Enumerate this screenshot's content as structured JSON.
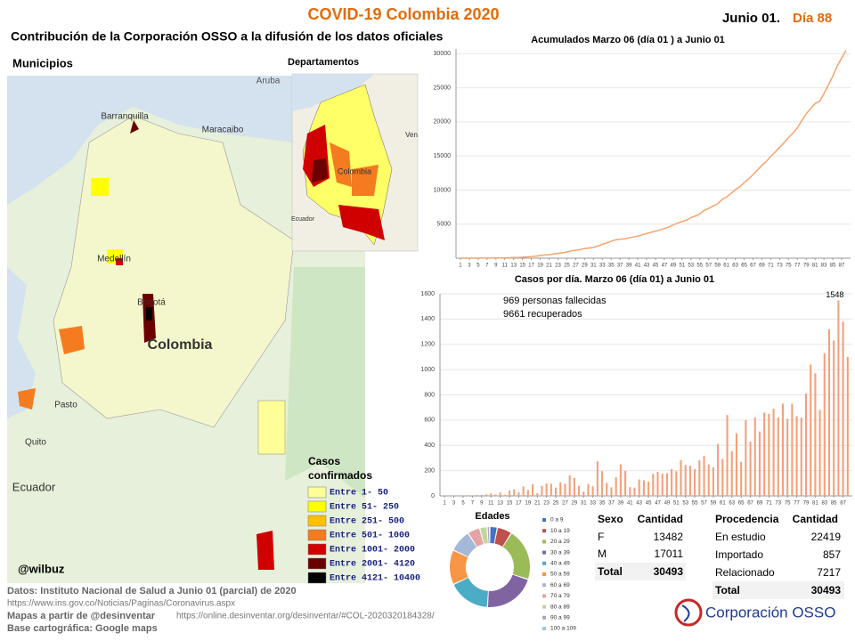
{
  "header": {
    "title": "COVID-19 Colombia 2020",
    "date": "Junio 01.",
    "day": "Día 88",
    "subtitle": "Contribución de la Corporación OSSO a la difusión de los datos oficiales"
  },
  "maps": {
    "municipios_title": "Municipios",
    "departamentos_title": "Departamentos",
    "labels": [
      "Aruba",
      "Barranquilla",
      "Maracaibo",
      "Medellín",
      "Bogotá",
      "Colombia",
      "Quito",
      "Ecuador",
      "Pasto",
      "Colombia",
      "Ven",
      "Ecuador"
    ],
    "legend_title": [
      "Casos",
      "confirmados"
    ],
    "legend": [
      {
        "label": "Entre 1- 50",
        "color": "#ffff99"
      },
      {
        "label": "Entre 51- 250",
        "color": "#ffff00"
      },
      {
        "label": "Entre 251- 500",
        "color": "#ffc000"
      },
      {
        "label": "Entre 501- 1000",
        "color": "#f47b20"
      },
      {
        "label": "Entre 1001- 2000",
        "color": "#d00000"
      },
      {
        "label": "Entre 2001- 4120",
        "color": "#6b0000"
      },
      {
        "label": "Entre 4121- 10400",
        "color": "#000000"
      }
    ],
    "credit": "@wilbuz"
  },
  "chart_data": [
    {
      "type": "line",
      "title": "Acumulados  Marzo 06 (día 01 ) a Junio 01",
      "color": "#f4a46c",
      "x": [
        1,
        2,
        3,
        4,
        5,
        6,
        7,
        8,
        9,
        10,
        11,
        12,
        13,
        14,
        15,
        16,
        17,
        18,
        19,
        20,
        21,
        22,
        23,
        24,
        25,
        26,
        27,
        28,
        29,
        30,
        31,
        32,
        33,
        34,
        35,
        36,
        37,
        38,
        39,
        40,
        41,
        42,
        43,
        44,
        45,
        46,
        47,
        48,
        49,
        50,
        51,
        52,
        53,
        54,
        55,
        56,
        57,
        58,
        59,
        60,
        61,
        62,
        63,
        64,
        65,
        66,
        67,
        68,
        69,
        70,
        71,
        72,
        73,
        74,
        75,
        76,
        77,
        78,
        79,
        80,
        81,
        82,
        83,
        84,
        85,
        86,
        87,
        88
      ],
      "values": [
        1,
        1,
        1,
        3,
        3,
        9,
        9,
        16,
        24,
        35,
        55,
        66,
        93,
        102,
        145,
        196,
        231,
        306,
        378,
        470,
        491,
        608,
        702,
        798,
        906,
        1065,
        1161,
        1267,
        1406,
        1485,
        1579,
        1780,
        2054,
        2223,
        2473,
        2709,
        2776,
        2852,
        2979,
        3105,
        3233,
        3439,
        3621,
        3792,
        3977,
        4149,
        4356,
        4561,
        4881,
        5142,
        5379,
        5597,
        5949,
        6207,
        6507,
        7006,
        7285,
        7668,
        7973,
        8613,
        8959,
        9456,
        10051,
        10495,
        11063,
        11613,
        12272,
        12930,
        13610,
        14216,
        14939,
        15574,
        16295,
        16935,
        17687,
        18330,
        19131,
        20177,
        21175,
        21981,
        22687,
        23003,
        24141,
        25406,
        26688,
        28236,
        29383,
        30493
      ],
      "xlim": [
        0,
        89
      ],
      "xticks": [
        1,
        3,
        5,
        7,
        9,
        11,
        13,
        15,
        17,
        19,
        21,
        23,
        25,
        27,
        29,
        31,
        33,
        35,
        37,
        39,
        41,
        43,
        45,
        47,
        49,
        51,
        53,
        55,
        57,
        59,
        61,
        63,
        65,
        67,
        69,
        71,
        73,
        75,
        77,
        79,
        81,
        83,
        85,
        87
      ],
      "ylim": [
        0,
        30700
      ],
      "yticks": [
        5000,
        10000,
        15000,
        20000,
        25000,
        30000
      ],
      "grid": true
    },
    {
      "type": "bar",
      "title": "Casos por día. Marzo 06 (día 01) a Junio 01",
      "color": "#f4a07a",
      "annotations": [
        "969 personas fallecidas",
        "9661 recuperados"
      ],
      "x": [
        1,
        2,
        3,
        4,
        5,
        6,
        7,
        8,
        9,
        10,
        11,
        12,
        13,
        14,
        15,
        16,
        17,
        18,
        19,
        20,
        21,
        22,
        23,
        24,
        25,
        26,
        27,
        28,
        29,
        30,
        31,
        32,
        33,
        34,
        35,
        36,
        37,
        38,
        39,
        40,
        41,
        42,
        43,
        44,
        45,
        46,
        47,
        48,
        49,
        50,
        51,
        52,
        53,
        54,
        55,
        56,
        57,
        58,
        59,
        60,
        61,
        62,
        63,
        64,
        65,
        66,
        67,
        68,
        69,
        70,
        71,
        72,
        73,
        74,
        75,
        76,
        77,
        78,
        79,
        80,
        81,
        82,
        83,
        84,
        85,
        86,
        87,
        88
      ],
      "values": [
        1,
        0,
        0,
        1,
        0,
        6,
        0,
        7,
        8,
        11,
        20,
        11,
        27,
        9,
        43,
        52,
        29,
        75,
        47,
        92,
        21,
        79,
        98,
        96,
        66,
        108,
        96,
        163,
        141,
        79,
        34,
        94,
        76,
        274,
        196,
        103,
        68,
        148,
        250,
        198,
        69,
        66,
        130,
        124,
        112,
        175,
        190,
        176,
        180,
        212,
        195,
        283,
        245,
        239,
        212,
        282,
        316,
        250,
        226,
        412,
        293,
        640,
        354,
        496,
        270,
        600,
        430,
        620,
        510,
        660,
        650,
        690,
        620,
        730,
        610,
        730,
        630,
        620,
        810,
        1040,
        970,
        680,
        1130,
        1320,
        1230,
        1548,
        1380,
        1100
      ],
      "xlim": [
        0,
        89
      ],
      "xticks": [
        1,
        3,
        5,
        7,
        9,
        11,
        13,
        15,
        17,
        19,
        21,
        23,
        25,
        27,
        29,
        31,
        33,
        35,
        37,
        39,
        41,
        43,
        45,
        47,
        49,
        51,
        53,
        55,
        57,
        59,
        61,
        63,
        65,
        67,
        69,
        71,
        73,
        75,
        77,
        79,
        81,
        83,
        85,
        87
      ],
      "ylim": [
        0,
        1600
      ],
      "yticks": [
        0,
        200,
        400,
        600,
        800,
        1000,
        1200,
        1400,
        1600
      ],
      "grid": true
    },
    {
      "type": "donut",
      "title": "Edades",
      "categories": [
        "0 a 9",
        "10 a 19",
        "20 a 29",
        "30 a 39",
        "40 a 49",
        "50 a 59",
        "60 a 69",
        "70 a 79",
        "80 a 89",
        "90 a 99",
        "100 a 109"
      ],
      "values": [
        3,
        6,
        21,
        21,
        17,
        14,
        9,
        5,
        3,
        1,
        0.1
      ],
      "colors": [
        "#4472c4",
        "#c0504d",
        "#9bbb59",
        "#8064a2",
        "#4bacc6",
        "#f79646",
        "#a5b8d8",
        "#e6a3a3",
        "#c3d69b",
        "#b3a2c7",
        "#93cddd"
      ]
    }
  ],
  "tables": {
    "sexo": {
      "header": [
        "Sexo",
        "Cantidad"
      ],
      "rows": [
        [
          "F",
          13482
        ],
        [
          "M",
          17011
        ],
        [
          "Total",
          30493
        ]
      ]
    },
    "procedencia": {
      "header": [
        "Procedencia",
        "Cantidad"
      ],
      "rows": [
        [
          "En estudio",
          22419
        ],
        [
          "Importado",
          857
        ],
        [
          "Relacionado",
          7217
        ],
        [
          "Total",
          30493
        ]
      ]
    }
  },
  "footer": {
    "source": "Datos: Instituto Nacional de Salud a Junio 01 (parcial) de 2020",
    "source_url": "https://www.ins.gov.co/Noticias/Paginas/Coronavirus.aspx",
    "maps_credit": "Mapas a partir de @desinventar",
    "maps_url": "https://online.desinventar.org/desinventar/#COL-2020320184328/",
    "base": "Base cartográfica: Google maps"
  },
  "logo": "Corporación OSSO"
}
